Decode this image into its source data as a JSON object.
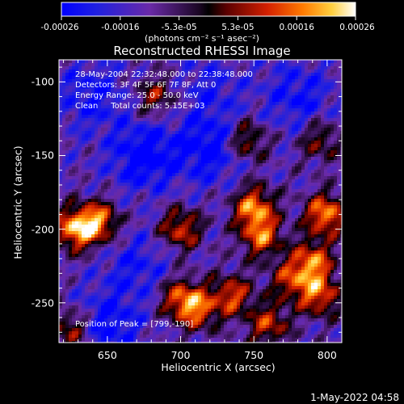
{
  "chart_data": {
    "type": "heatmap",
    "title": "Reconstructed RHESSI Image",
    "xlabel": "Heliocentric X (arcsec)",
    "ylabel": "Heliocentric Y (arcsec)",
    "xlim": [
      617,
      810
    ],
    "ylim": [
      -277,
      -85
    ],
    "xticks": [
      650,
      700,
      750,
      800
    ],
    "yticks": [
      -100,
      -150,
      -200,
      -250
    ],
    "colorbar": {
      "min": -0.00026,
      "max": 0.00026,
      "ticks": [
        "-0.00026",
        "-0.00016",
        "-5.3e-05",
        "5.3e-05",
        "0.00016",
        "0.00026"
      ],
      "units": "(photons cm⁻² s⁻¹ asec⁻²)"
    },
    "annotations": [
      "28-May-2004 22:32:48.000 to 22:38:48.000",
      "Detectors: 3F 4F 5F 6F 7F 8F, Att 0",
      "Energy Range: 25.0 - 50.0 keV",
      "Clean     Total counts: 5.15E+03"
    ],
    "peak_label": "Position of Peak = [799,-190]",
    "peak": [
      799,
      -190
    ],
    "bright_regions": [
      {
        "x": 628,
        "y": -200,
        "value": 0.00026
      },
      {
        "x": 644,
        "y": -195,
        "value": 0.00022
      },
      {
        "x": 683,
        "y": -110,
        "value": 0.00012
      },
      {
        "x": 700,
        "y": -200,
        "value": 0.00018
      },
      {
        "x": 700,
        "y": -247,
        "value": 0.00018
      },
      {
        "x": 712,
        "y": -255,
        "value": 0.00016
      },
      {
        "x": 745,
        "y": -140,
        "value": 0.00014
      },
      {
        "x": 750,
        "y": -185,
        "value": 0.00024
      },
      {
        "x": 755,
        "y": -205,
        "value": 0.0002
      },
      {
        "x": 735,
        "y": -245,
        "value": 0.00018
      },
      {
        "x": 760,
        "y": -265,
        "value": 0.00016
      },
      {
        "x": 775,
        "y": -235,
        "value": 0.00014
      },
      {
        "x": 790,
        "y": -222,
        "value": 0.00022
      },
      {
        "x": 799,
        "y": -190,
        "value": 0.00026
      },
      {
        "x": 795,
        "y": -245,
        "value": 0.0002
      },
      {
        "x": 795,
        "y": -140,
        "value": 0.0001
      },
      {
        "x": 625,
        "y": -268,
        "value": 0.00014
      }
    ],
    "dark_regions": [
      {
        "x": 640,
        "y": -110,
        "value": -0.0002
      },
      {
        "x": 675,
        "y": -150,
        "value": -0.00026
      },
      {
        "x": 720,
        "y": -145,
        "value": -0.00024
      },
      {
        "x": 650,
        "y": -265,
        "value": -0.00022
      },
      {
        "x": 670,
        "y": -225,
        "value": -0.00018
      },
      {
        "x": 780,
        "y": -110,
        "value": -0.0002
      },
      {
        "x": 720,
        "y": -105,
        "value": -0.00016
      }
    ]
  },
  "timestamp": "1-May-2022 04:58"
}
